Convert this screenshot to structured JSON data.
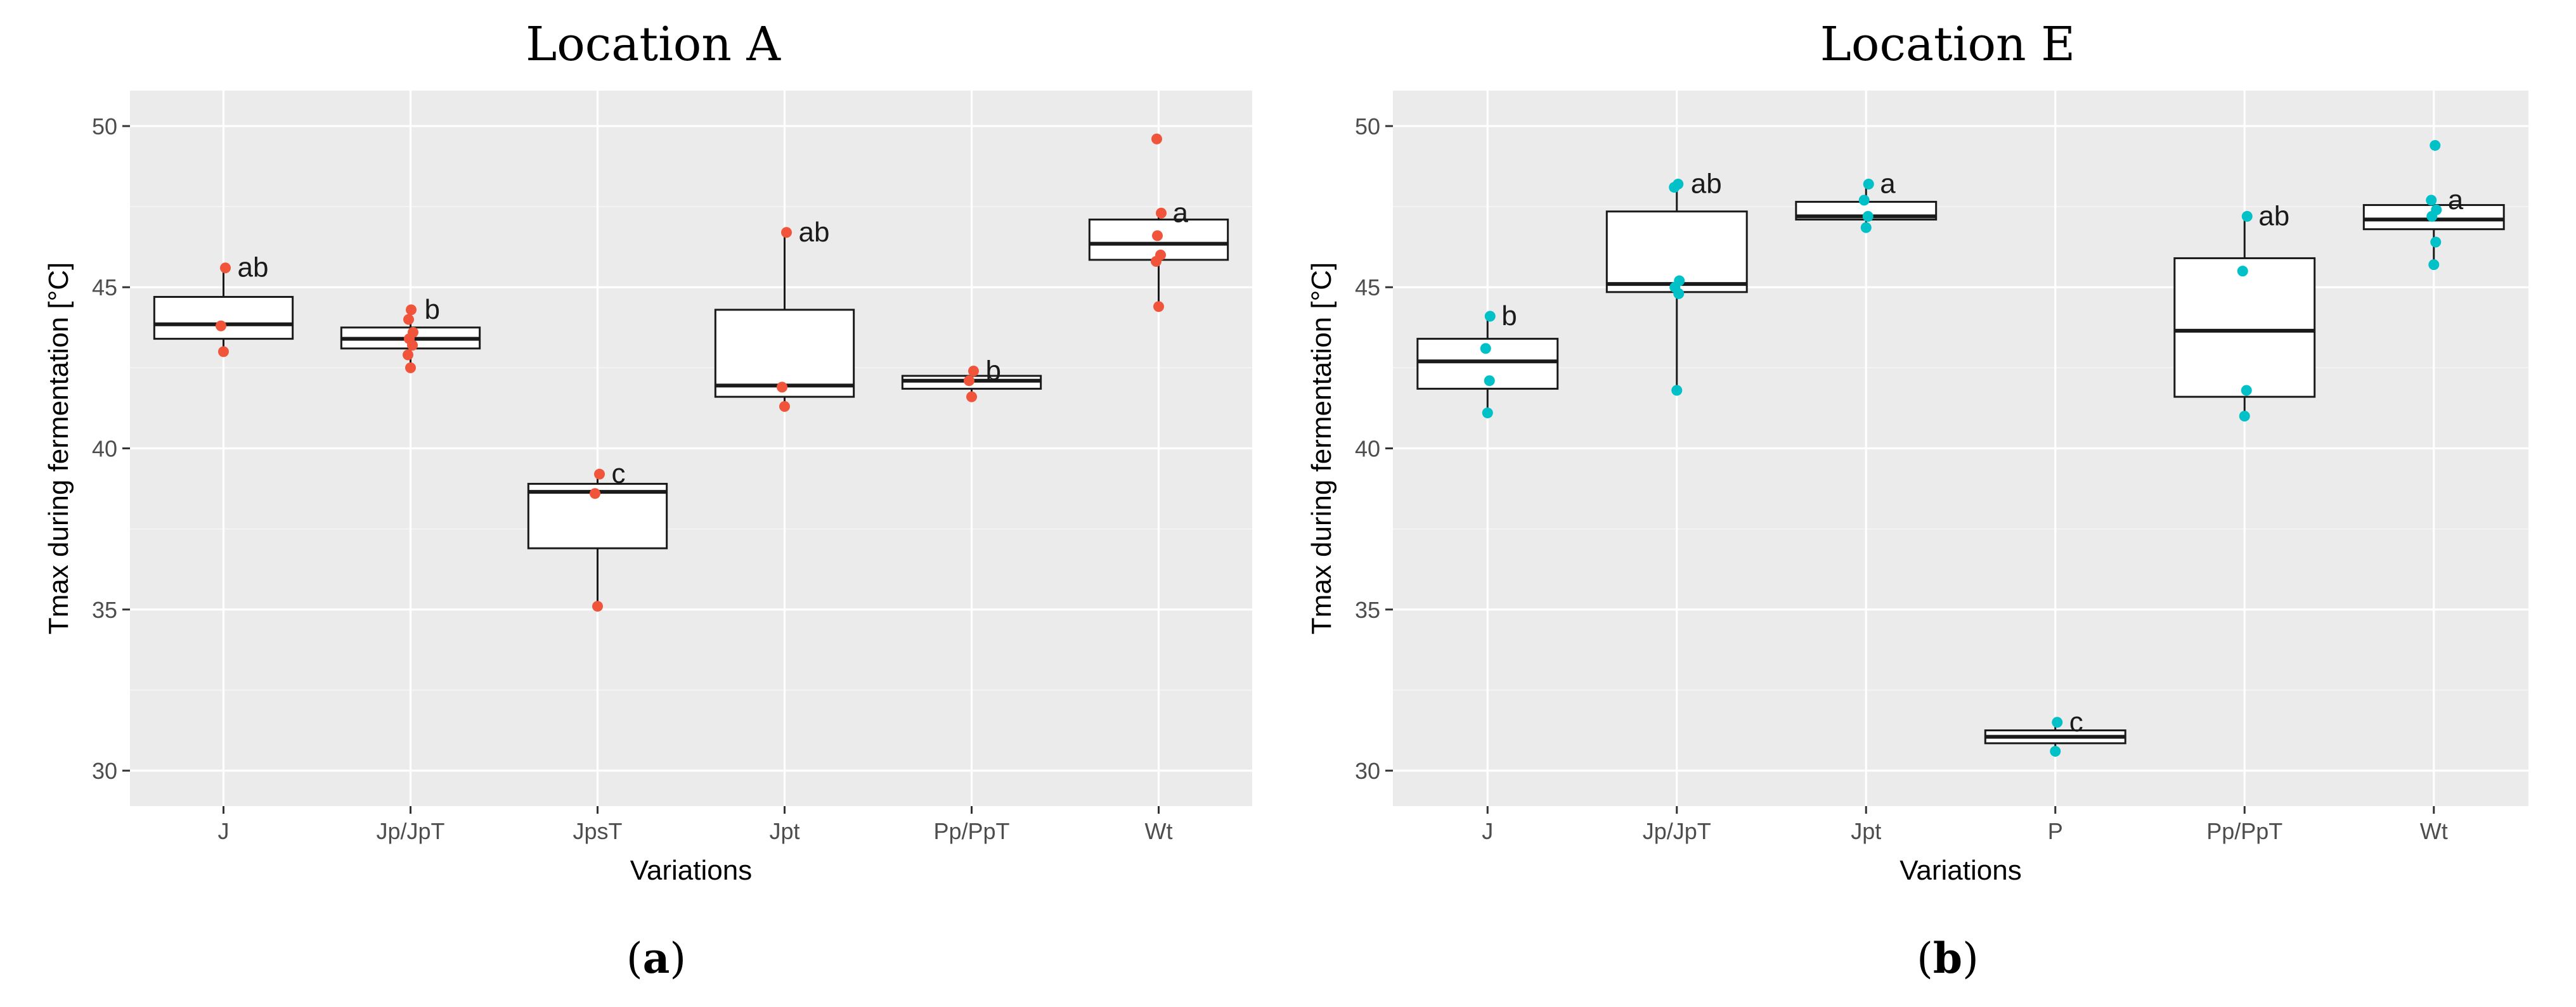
{
  "chart_data": [
    {
      "type": "box",
      "panel_label": "a",
      "title": "Location A",
      "xlabel": "Variations",
      "ylabel": "Tmax during fermentation [°C]",
      "ylim": [
        28.9,
        51.1
      ],
      "yticks": [
        30,
        35,
        40,
        45,
        50
      ],
      "point_color": "#f0553b",
      "categories": [
        "J",
        "Jp/JpT",
        "JpsT",
        "Jpt",
        "Pp/PpT",
        "Wt"
      ],
      "boxes": [
        {
          "category": "J",
          "min": 43.0,
          "q1": 43.4,
          "median": 43.85,
          "q3": 44.7,
          "max": 45.6,
          "points": [
            43.0,
            43.8,
            45.6
          ],
          "letter": "ab"
        },
        {
          "category": "Jp/JpT",
          "min": 42.5,
          "q1": 43.1,
          "median": 43.4,
          "q3": 43.75,
          "max": 44.3,
          "points": [
            42.5,
            42.9,
            43.2,
            43.4,
            43.6,
            44.0,
            44.3
          ],
          "letter": "b"
        },
        {
          "category": "JpsT",
          "min": 35.1,
          "q1": 36.9,
          "median": 38.65,
          "q3": 38.9,
          "max": 39.2,
          "points": [
            35.1,
            38.6,
            39.2
          ],
          "letter": "c"
        },
        {
          "category": "Jpt",
          "min": 41.3,
          "q1": 41.6,
          "median": 41.95,
          "q3": 44.3,
          "max": 46.7,
          "points": [
            41.3,
            41.9,
            46.7
          ],
          "letter": "ab"
        },
        {
          "category": "Pp/PpT",
          "min": 41.6,
          "q1": 41.85,
          "median": 42.1,
          "q3": 42.25,
          "max": 42.4,
          "points": [
            41.6,
            42.1,
            42.4
          ],
          "letter": "b"
        },
        {
          "category": "Wt",
          "min": 44.4,
          "q1": 45.85,
          "median": 46.35,
          "q3": 47.1,
          "max": 47.3,
          "points": [
            44.4,
            45.8,
            46.0,
            46.6,
            47.3,
            49.6
          ],
          "letter": "a"
        }
      ]
    },
    {
      "type": "box",
      "panel_label": "b",
      "title": "Location E",
      "xlabel": "Variations",
      "ylabel": "Tmax during fermentation [°C]",
      "ylim": [
        28.9,
        51.1
      ],
      "yticks": [
        30,
        35,
        40,
        45,
        50
      ],
      "point_color": "#00c0c8",
      "categories": [
        "J",
        "Jp/JpT",
        "Jpt",
        "P",
        "Pp/PpT",
        "Wt"
      ],
      "boxes": [
        {
          "category": "J",
          "min": 41.1,
          "q1": 41.85,
          "median": 42.7,
          "q3": 43.4,
          "max": 44.1,
          "points": [
            41.1,
            42.1,
            43.1,
            44.1
          ],
          "letter": "b"
        },
        {
          "category": "Jp/JpT",
          "min": 41.8,
          "q1": 44.85,
          "median": 45.1,
          "q3": 47.35,
          "max": 48.2,
          "points": [
            41.8,
            44.8,
            45.0,
            45.2,
            48.1,
            48.2
          ],
          "letter": "ab"
        },
        {
          "category": "Jpt",
          "min": 46.85,
          "q1": 47.1,
          "median": 47.2,
          "q3": 47.65,
          "max": 48.2,
          "points": [
            46.85,
            47.2,
            47.7,
            48.2
          ],
          "letter": "a"
        },
        {
          "category": "P",
          "min": 30.6,
          "q1": 30.85,
          "median": 31.05,
          "q3": 31.25,
          "max": 31.5,
          "points": [
            30.6,
            31.5
          ],
          "letter": "c"
        },
        {
          "category": "Pp/PpT",
          "min": 41.0,
          "q1": 41.6,
          "median": 43.65,
          "q3": 45.9,
          "max": 47.2,
          "points": [
            41.0,
            41.8,
            45.5,
            47.2
          ],
          "letter": "ab"
        },
        {
          "category": "Wt",
          "min": 45.7,
          "q1": 46.8,
          "median": 47.1,
          "q3": 47.55,
          "max": 47.7,
          "points": [
            45.7,
            46.4,
            47.2,
            47.4,
            47.7,
            49.4
          ],
          "letter": "a"
        }
      ]
    }
  ]
}
